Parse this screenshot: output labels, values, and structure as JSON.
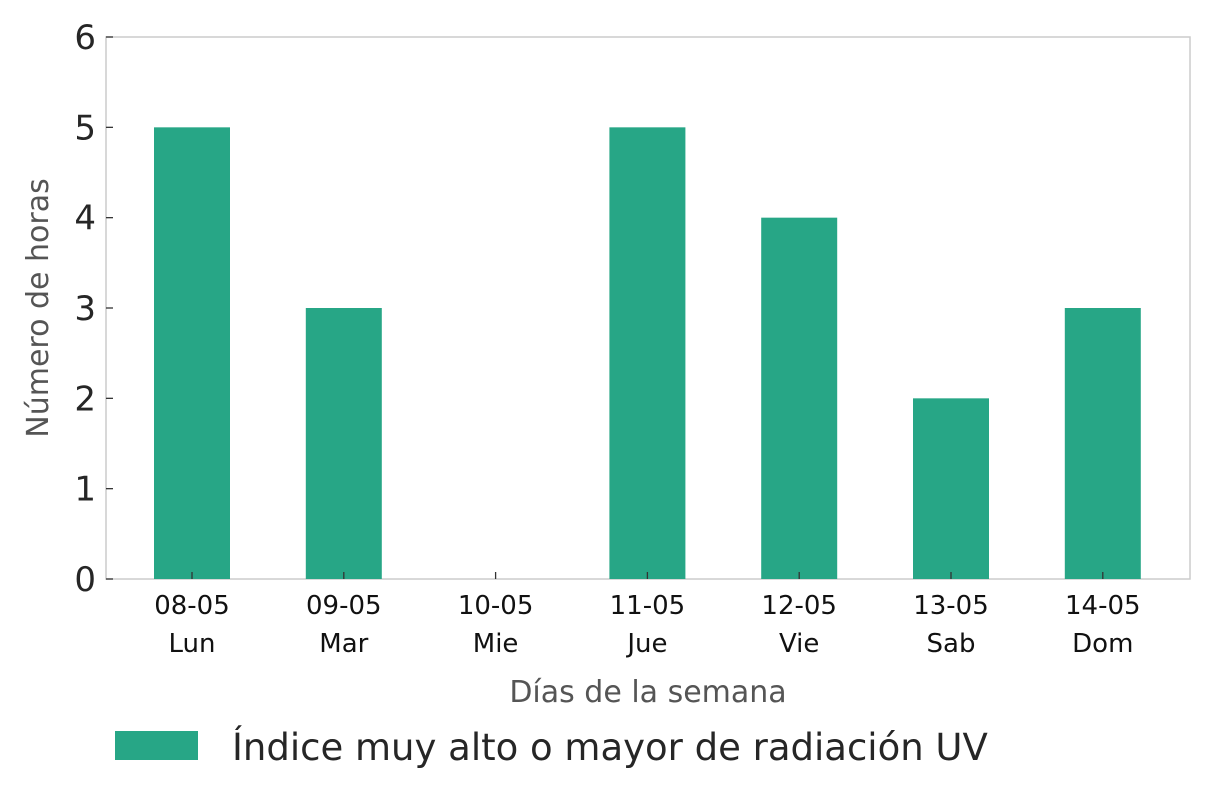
{
  "chart_data": {
    "type": "bar",
    "categories": [
      [
        "08-05",
        "Lun"
      ],
      [
        "09-05",
        "Mar"
      ],
      [
        "10-05",
        "Mie"
      ],
      [
        "11-05",
        "Jue"
      ],
      [
        "12-05",
        "Vie"
      ],
      [
        "13-05",
        "Sab"
      ],
      [
        "14-05",
        "Dom"
      ]
    ],
    "series": [
      {
        "name": "Índice muy alto o mayor de radiación UV",
        "color": "#27a686",
        "values": [
          5,
          3,
          0,
          5,
          4,
          2,
          3
        ]
      }
    ],
    "xlabel": "Días de la semana",
    "ylabel": "Número de horas",
    "ylim": [
      0,
      6
    ],
    "yticks": [
      0,
      1,
      2,
      3,
      4,
      5,
      6
    ],
    "grid": false,
    "legend_position": "bottom-left"
  }
}
